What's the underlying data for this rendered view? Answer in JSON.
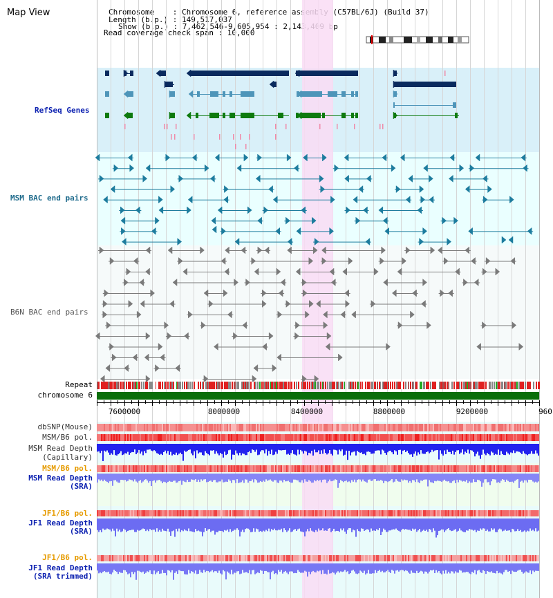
{
  "title": "Map View",
  "info": {
    "chromosome_line": "Chromosome    : Chromosome 6, reference assembly (C57BL/6J) (Build 37)",
    "length_line": "Length (b.p.) : 149,517,037",
    "show_line": "Show (b.p.) : 7,462,546-9,605,954 : 2,143,409 bp",
    "coverage_line": "Read coverage check span : 10,000"
  },
  "tracks": {
    "refseq_genes": "RefSeq Genes",
    "msm_bac": "MSM BAC end pairs",
    "b6n_bac": "B6N BAC end pairs",
    "repeat": "Repeat",
    "chromosome": "chromosome 6",
    "dbsnp": "dbSNP(Mouse)",
    "msm_b6_pol": "MSM/B6 pol.",
    "msm_read_depth_cap_1": "MSM Read Depth",
    "msm_read_depth_cap_2": "(Capillary)",
    "msm_b6_pol_sra": "MSM/B6 pol.",
    "msm_read_depth_sra_1": "MSM Read Depth",
    "msm_read_depth_sra_2": "(SRA)",
    "jf1_b6_pol": "JF1/B6 pol.",
    "jf1_read_depth_1": "JF1 Read Depth",
    "jf1_read_depth_2": "(SRA)",
    "jf1_b6_pol_trim": "JF1/B6 pol.",
    "jf1_read_depth_trim_1": "JF1 Read Depth",
    "jf1_read_depth_trim_2": "(SRA trimmed)"
  },
  "axis": {
    "ticks": [
      "7600000",
      "8000000",
      "8400000",
      "8800000",
      "9200000",
      "960"
    ]
  },
  "colors": {
    "refseq_bg": "#d9f0f9",
    "bac_bg": "#eaffff",
    "read_bg": "#e9fbfb",
    "sra_bg": "#f0fdee",
    "highlight": "#f9dcf5",
    "gene_dark": "#0a2a5e",
    "gene_mid": "#4e95b9",
    "gene_green": "#0e7a0e",
    "msm_pair": "#1d7c9e",
    "b6n_pair": "#7a7a7a",
    "depth_blue": "#2222ee",
    "depth_light": "#8686f6",
    "label_blue": "#0b20b0",
    "label_teal": "#1f6b8c",
    "label_orange": "#e69b00",
    "label_gray": "#555555",
    "chrom_green": "#0a6e0a"
  }
}
